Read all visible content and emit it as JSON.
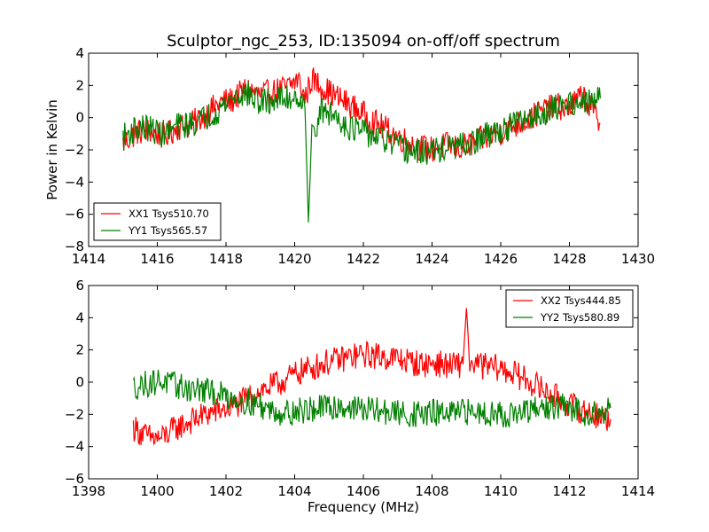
{
  "figure": {
    "title": "Sculptor_ngc_253, ID:135094 on-off/off spectrum",
    "ylabel": "Power in Kelvin",
    "xlabel": "Frequency (MHz)",
    "background": "#ffffff"
  },
  "colors": {
    "XX": "#ff0000",
    "YY": "#008000"
  },
  "chart_data": [
    {
      "type": "line",
      "title": "Sculptor_ngc_253, ID:135094 on-off/off spectrum",
      "ylabel": "Power in Kelvin",
      "xlim": [
        1414,
        1430
      ],
      "ylim": [
        -8,
        4
      ],
      "xticks": [
        1414,
        1416,
        1418,
        1420,
        1422,
        1424,
        1426,
        1428,
        1430
      ],
      "yticks": [
        -8,
        -6,
        -4,
        -2,
        0,
        2,
        4
      ],
      "grid": false,
      "legend_position": "lower-left",
      "series": [
        {
          "name": "XX1 Tsys510.70",
          "color": "#ff0000",
          "x": [
            1415.0,
            1415.4,
            1415.8,
            1416.2,
            1416.6,
            1417.0,
            1417.4,
            1417.8,
            1418.2,
            1418.6,
            1419.0,
            1419.4,
            1419.8,
            1420.1,
            1420.3,
            1420.5,
            1420.8,
            1421.2,
            1421.6,
            1422.0,
            1422.4,
            1422.8,
            1423.2,
            1423.6,
            1424.0,
            1424.4,
            1424.8,
            1425.2,
            1425.6,
            1426.0,
            1426.4,
            1426.8,
            1427.2,
            1427.6,
            1428.0,
            1428.4,
            1428.9
          ],
          "y": [
            -1.6,
            -0.9,
            -0.8,
            -1.2,
            -0.6,
            -0.4,
            0.2,
            0.9,
            1.1,
            1.8,
            1.4,
            1.6,
            1.9,
            2.4,
            1.2,
            2.4,
            1.9,
            1.3,
            0.8,
            0.2,
            -0.4,
            -0.9,
            -1.4,
            -1.8,
            -2.0,
            -1.7,
            -1.9,
            -1.6,
            -1.2,
            -0.9,
            -0.5,
            -0.1,
            0.4,
            0.7,
            0.6,
            1.4,
            -0.4
          ]
        },
        {
          "name": "YY1 Tsys565.57",
          "color": "#008000",
          "x": [
            1415.0,
            1415.4,
            1415.8,
            1416.2,
            1416.6,
            1417.0,
            1417.4,
            1417.8,
            1418.2,
            1418.6,
            1419.0,
            1419.4,
            1419.8,
            1420.1,
            1420.3,
            1420.4,
            1420.5,
            1420.8,
            1421.2,
            1421.6,
            1422.0,
            1422.4,
            1422.8,
            1423.2,
            1423.6,
            1424.0,
            1424.4,
            1424.8,
            1425.2,
            1425.6,
            1426.0,
            1426.4,
            1426.8,
            1427.2,
            1427.6,
            1428.0,
            1428.4,
            1428.9
          ],
          "y": [
            -1.2,
            -0.6,
            -0.7,
            -1.0,
            -0.5,
            -0.4,
            0.0,
            0.5,
            1.3,
            1.5,
            0.9,
            1.1,
            1.2,
            1.4,
            0.6,
            -6.5,
            -1.0,
            0.4,
            0.1,
            -0.6,
            -0.9,
            -1.2,
            -1.6,
            -2.0,
            -2.2,
            -2.1,
            -1.9,
            -1.8,
            -1.6,
            -1.1,
            -0.8,
            -0.4,
            0.0,
            0.3,
            0.6,
            1.0,
            0.8,
            1.2
          ]
        }
      ]
    },
    {
      "type": "line",
      "xlabel": "Frequency (MHz)",
      "xlim": [
        1398,
        1414
      ],
      "ylim": [
        -6,
        6
      ],
      "xticks": [
        1398,
        1400,
        1402,
        1404,
        1406,
        1408,
        1410,
        1412,
        1414
      ],
      "yticks": [
        -6,
        -4,
        -2,
        0,
        2,
        4,
        6
      ],
      "grid": false,
      "legend_position": "top-right",
      "series": [
        {
          "name": "XX2 Tsys444.85",
          "color": "#ff0000",
          "x": [
            1399.3,
            1399.7,
            1400.1,
            1400.5,
            1400.9,
            1401.3,
            1401.7,
            1402.1,
            1402.5,
            1402.9,
            1403.3,
            1403.7,
            1404.1,
            1404.5,
            1404.9,
            1405.3,
            1405.7,
            1406.1,
            1406.5,
            1406.9,
            1407.3,
            1407.7,
            1408.1,
            1408.5,
            1408.9,
            1409.0,
            1409.1,
            1409.5,
            1409.9,
            1410.3,
            1410.7,
            1411.1,
            1411.5,
            1411.9,
            1412.3,
            1412.7,
            1413.2
          ],
          "y": [
            -2.8,
            -3.4,
            -3.5,
            -2.9,
            -2.5,
            -2.1,
            -1.8,
            -1.6,
            -1.2,
            -0.6,
            -0.3,
            0.1,
            0.6,
            0.9,
            1.2,
            1.4,
            1.6,
            1.7,
            1.6,
            1.5,
            1.3,
            1.1,
            1.2,
            1.0,
            1.1,
            4.6,
            1.2,
            1.0,
            0.9,
            0.6,
            0.2,
            -0.3,
            -0.8,
            -1.3,
            -1.7,
            -2.0,
            -2.3
          ]
        },
        {
          "name": "YY2 Tsys580.89",
          "color": "#008000",
          "x": [
            1399.3,
            1399.7,
            1400.1,
            1400.5,
            1400.9,
            1401.3,
            1401.7,
            1402.1,
            1402.5,
            1402.9,
            1403.3,
            1403.7,
            1404.1,
            1404.5,
            1404.9,
            1405.3,
            1405.7,
            1406.1,
            1406.5,
            1406.9,
            1407.3,
            1407.7,
            1408.1,
            1408.5,
            1408.9,
            1409.3,
            1409.7,
            1410.1,
            1410.5,
            1410.9,
            1411.3,
            1411.7,
            1412.1,
            1412.5,
            1412.9,
            1413.2
          ],
          "y": [
            -0.3,
            -0.1,
            0.1,
            -0.2,
            -0.4,
            -0.5,
            -0.7,
            -0.9,
            -1.1,
            -1.4,
            -1.7,
            -1.9,
            -1.8,
            -1.7,
            -1.6,
            -1.5,
            -1.6,
            -1.7,
            -1.8,
            -1.9,
            -2.0,
            -2.0,
            -1.9,
            -2.0,
            -1.9,
            -1.8,
            -1.9,
            -2.0,
            -2.0,
            -1.8,
            -1.6,
            -1.5,
            -1.7,
            -1.9,
            -1.8,
            -1.6
          ]
        }
      ]
    }
  ]
}
